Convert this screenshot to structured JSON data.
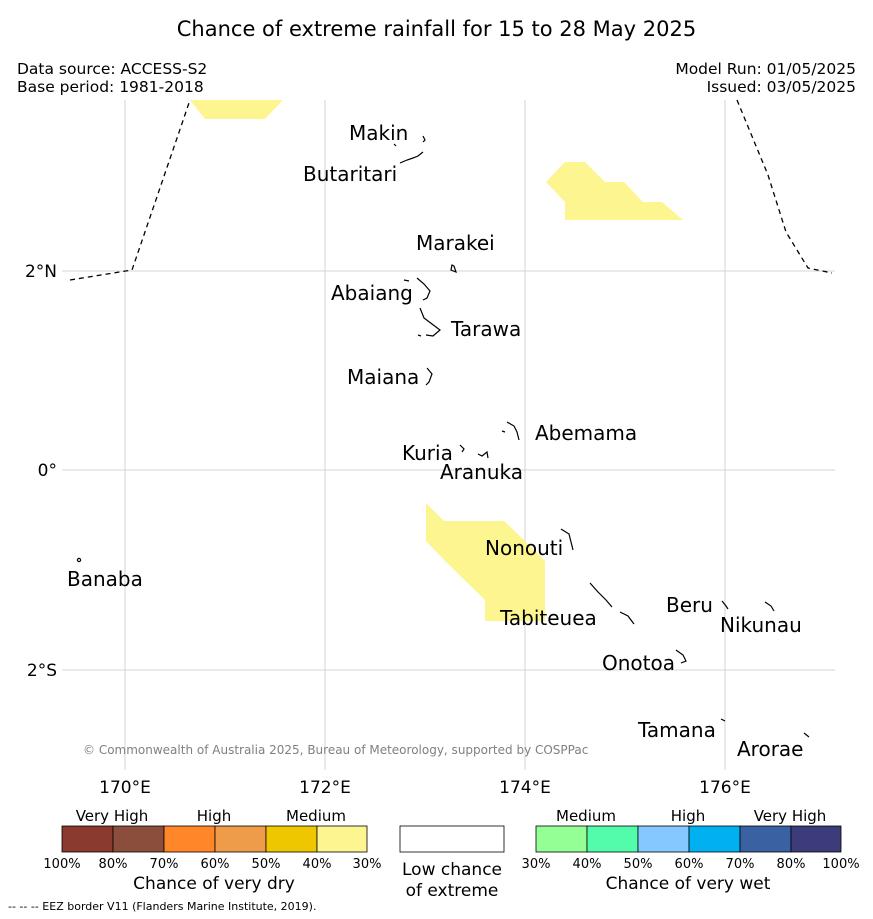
{
  "header": {
    "title": "Chance of extreme rainfall for 15 to 28 May 2025",
    "data_source": "Data source: ACCESS-S2",
    "base_period": "Base period: 1981-2018",
    "model_run": "Model Run: 01/05/2025",
    "issued": "Issued: 03/05/2025"
  },
  "map": {
    "lat_labels": [
      "2°N",
      "0°",
      "2°S"
    ],
    "lon_labels": [
      "170°E",
      "172°E",
      "174°E",
      "176°E"
    ],
    "places": {
      "makin": "Makin",
      "butaritari": "Butaritari",
      "marakei": "Marakei",
      "abaiang": "Abaiang",
      "tarawa": "Tarawa",
      "maiana": "Maiana",
      "abemama": "Abemama",
      "kuria": "Kuria",
      "aranuka": "Aranuka",
      "nonouti": "Nonouti",
      "banaba": "Banaba",
      "beru": "Beru",
      "tabiteuea": "Tabiteuea",
      "nikunau": "Nikunau",
      "onotoa": "Onotoa",
      "tamana": "Tamana",
      "arorae": "Arorae"
    },
    "credit": "© Commonwealth of Australia 2025, Bureau of Meteorology, supported by COSPPac",
    "colors": {
      "dry_30_40": "#fdf590",
      "grid": "#c8c8c8",
      "eez": "#000000"
    }
  },
  "legend": {
    "dry": {
      "headers": [
        "Very High",
        "High",
        "Medium"
      ],
      "colors": [
        "#8b3a2f",
        "#8b4e3c",
        "#ff8629",
        "#ee9b4a",
        "#efc700",
        "#fdf590"
      ],
      "ticks": [
        "100%",
        "80%",
        "70%",
        "60%",
        "50%",
        "40%",
        "30%"
      ],
      "title": "Chance of very dry"
    },
    "low": {
      "color": "#ffffff",
      "title_line1": "Low chance",
      "title_line2": "of extreme"
    },
    "wet": {
      "headers": [
        "Medium",
        "High",
        "Very High"
      ],
      "colors": [
        "#94ff94",
        "#52fcaa",
        "#85c8ff",
        "#00b0f0",
        "#3a62a3",
        "#3c3c7a"
      ],
      "ticks": [
        "30%",
        "40%",
        "50%",
        "60%",
        "70%",
        "80%",
        "100%"
      ],
      "title": "Chance of very wet"
    }
  },
  "footer": {
    "eez_note": "-- -- -- EEZ border V11 (Flanders Marine Institute, 2019)."
  }
}
